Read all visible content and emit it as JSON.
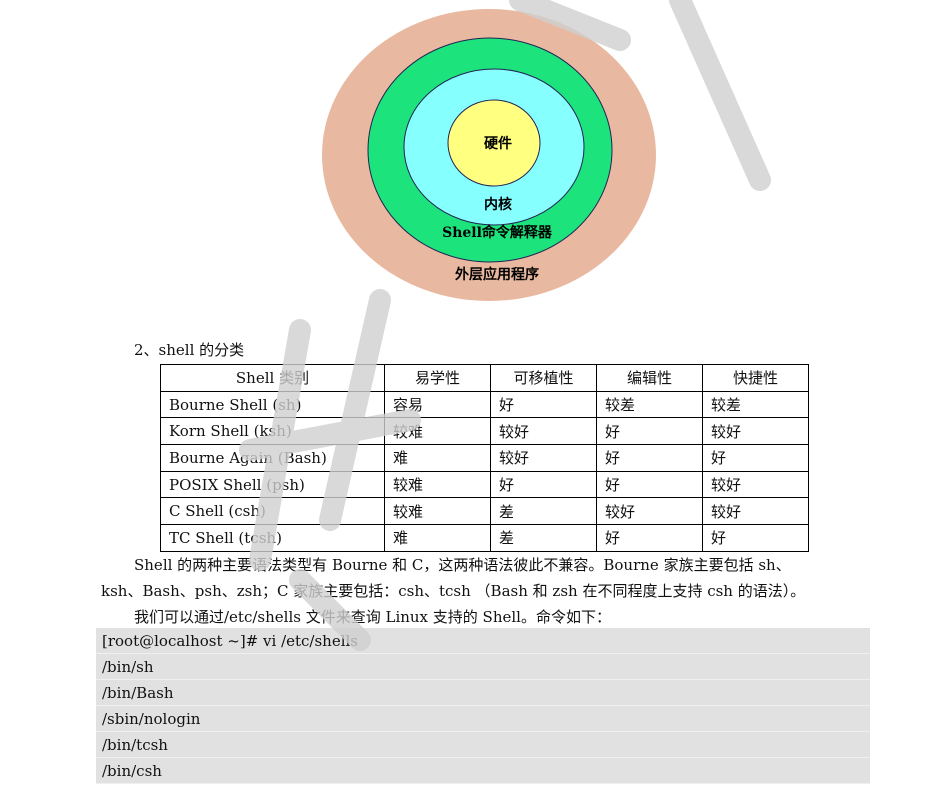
{
  "diagram": {
    "layers": [
      "硬件",
      "内核",
      "Shell命令解释器",
      "外层应用程序"
    ],
    "colors": {
      "outer": "#e8b9a0",
      "shell": "#1ce37b",
      "kernel": "#86ffff",
      "hardware": "#ffff80"
    }
  },
  "section_title": "2、shell 的分类",
  "table": {
    "headers": [
      "Shell 类别",
      "易学性",
      "可移植性",
      "编辑性",
      "快捷性"
    ],
    "rows": [
      [
        "Bourne Shell (sh)",
        "容易",
        "好",
        "较差",
        "较差"
      ],
      [
        "Korn Shell (ksh)",
        "较难",
        "较好",
        "好",
        "较好"
      ],
      [
        "Bourne Again (Bash)",
        "难",
        "较好",
        "好",
        "好"
      ],
      [
        "POSIX Shell (psh)",
        "较难",
        "好",
        "好",
        "较好"
      ],
      [
        "C Shell (csh)",
        "较难",
        "差",
        "较好",
        "较好"
      ],
      [
        "TC Shell (tcsh)",
        "难",
        "差",
        "好",
        "好"
      ]
    ]
  },
  "para1_line1": "Shell 的两种主要语法类型有 Bourne 和 C，这两种语法彼此不兼容。Bourne 家族主要包括 sh、",
  "para1_line2": "ksh、Bash、psh、zsh；C 家族主要包括：csh、tcsh （Bash 和 zsh 在不同程度上支持 csh 的语法）。",
  "para2": "我们可以通过/etc/shells 文件来查询 Linux 支持的 Shell。命令如下：",
  "code_lines": [
    "[root@localhost ~]# vi /etc/shells",
    "/bin/sh",
    "/bin/Bash",
    "/sbin/nologin",
    "/bin/tcsh",
    "/bin/csh"
  ]
}
